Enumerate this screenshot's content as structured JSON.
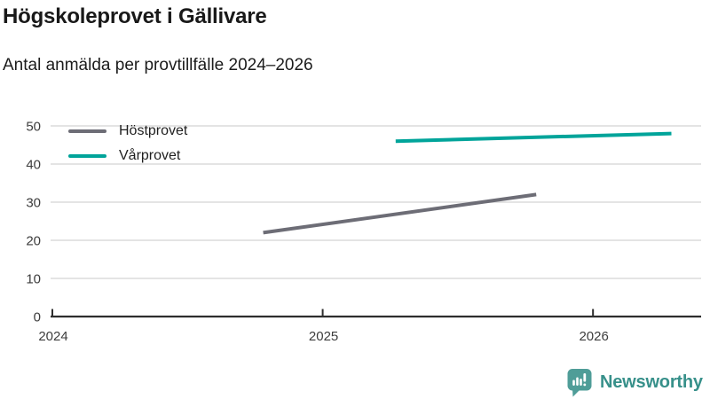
{
  "header": {
    "title": "Högskoleprovet i Gällivare",
    "subtitle": "Antal anmälda per provtillfälle 2024–2026"
  },
  "chart_data": {
    "type": "line",
    "title": "Högskoleprovet i Gällivare",
    "subtitle": "Antal anmälda per provtillfälle 2024–2026",
    "xlabel": "",
    "ylabel": "Antal anmälda",
    "x_ticks": [
      "2024",
      "2025",
      "2026"
    ],
    "x_tick_values": [
      2024,
      2025,
      2026
    ],
    "y_ticks": [
      0,
      10,
      20,
      30,
      40,
      50
    ],
    "ylim": [
      0,
      50
    ],
    "xlim": [
      2024,
      2026.4
    ],
    "grid": "horizontal-only",
    "legend_position": "inside-top-left",
    "series": [
      {
        "name": "Höstprovet",
        "color": "#6d6d76",
        "x": [
          2024.78,
          2025.79
        ],
        "values": [
          22,
          32
        ]
      },
      {
        "name": "Vårprovet",
        "color": "#00a49a",
        "x": [
          2025.27,
          2026.29
        ],
        "values": [
          46,
          48
        ]
      }
    ],
    "colors": {
      "grid": "#e4e4e4",
      "axis": "#2e2e2e",
      "tick_label": "#3c3c3c"
    }
  },
  "footer": {
    "brand": "Newsworthy",
    "brand_color": "#37908a",
    "logo_color": "#4f9d98",
    "logo_icon": "bar-chart-speech-bubble-icon"
  }
}
